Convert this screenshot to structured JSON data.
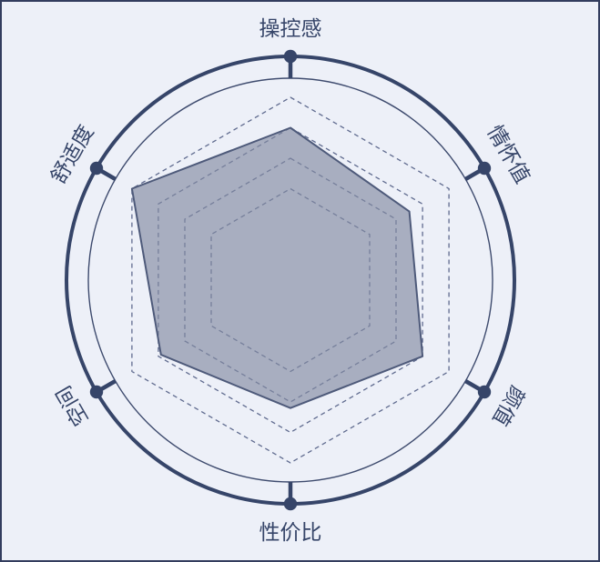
{
  "chart_data": {
    "type": "radar",
    "title": "",
    "grid_shape": "hexagon-dashed",
    "outer_circle": true,
    "indicators": [
      {
        "label": "操控感",
        "angle_deg": 90,
        "label_rotate": 0
      },
      {
        "label": "情怀值",
        "angle_deg": 30,
        "label_rotate": 60
      },
      {
        "label": "颜值",
        "angle_deg": -30,
        "label_rotate": 120
      },
      {
        "label": "性价比",
        "angle_deg": -90,
        "label_rotate": 0
      },
      {
        "label": "空间",
        "angle_deg": 210,
        "label_rotate": -120
      },
      {
        "label": "舒适度",
        "angle_deg": 150,
        "label_rotate": -60
      }
    ],
    "scale": {
      "min": 0,
      "max": 6,
      "grid_rings": [
        3,
        4,
        5,
        6
      ]
    },
    "series": [
      {
        "name": "rating",
        "values": [
          5.0,
          4.5,
          5.0,
          4.2,
          4.9,
          6.0
        ]
      }
    ],
    "legend": [],
    "grid_on": true,
    "legend_position": "none"
  },
  "style": {
    "background_color": "#edf0f8",
    "frame_border_color": "#333d5e",
    "axis_color": "#364569",
    "inner_circle_color": "#3e4b6e",
    "grid_dash_color": "#46537c",
    "series_fill_color": "#838aa2",
    "series_fill_opacity": 0.65,
    "series_stroke_color": "#4e5a7a",
    "label_color": "#364569"
  }
}
